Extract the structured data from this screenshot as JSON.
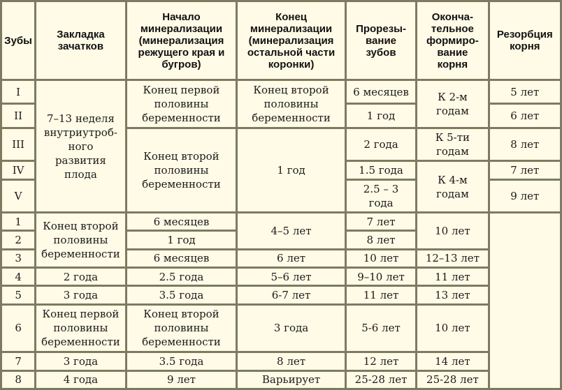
{
  "header": {
    "teeth": "Зубы",
    "germ": "Закладка\nзачатков",
    "min_start": "Начало\nминерализации\n(минерализация\nрежущего края и\nбугров)",
    "min_end": "Конец\nминерализации\n(минерализация\nостальной части\nкоронки)",
    "eruption": "Прорезы-\nвание\nзубов",
    "root_complete": "Оконча-\nтельное\nформиро-\nвание\nкорня",
    "resorption": "Резорбция\nкорня"
  },
  "primary": {
    "teeth": [
      "I",
      "II",
      "III",
      "IV",
      "V"
    ],
    "germ": "7–13 неделя\nвнутриутроб-\nного\nразвития\nплода",
    "min_start_12": "Конец первой\nполовины\nбеременности",
    "min_start_345": "Конец второй\nполовины\nбеременности",
    "min_end_12": "Конец второй\nполовины\nбеременности",
    "min_end_345": "1 год",
    "eruption": [
      "6 месяцев",
      "1 год",
      "2 года",
      "1.5 года",
      "2.5 – 3\nгода"
    ],
    "root_12": "К 2-м\nгодам",
    "root_3": "К 5-ти\nгодам",
    "root_45": "К 4-м\nгодам",
    "resorption": [
      "5 лет",
      "6 лет",
      "8 лет",
      "7 лет",
      "9 лет"
    ]
  },
  "permanent": {
    "teeth": [
      "1",
      "2",
      "3",
      "4",
      "5",
      "6",
      "7",
      "8"
    ],
    "germ_123": "Конец второй\nполовины\nбеременности",
    "germ_4": "2 года",
    "germ_5": "3 года",
    "germ_6": "Конец первой\nполовины\nбеременности",
    "germ_7": "3 года",
    "germ_8": "4 года",
    "min_start": [
      "6 месяцев",
      "1 год",
      "6 месяцев",
      "2.5 года",
      "3.5 года",
      "Конец второй\nполовины\nбеременности",
      "3.5 года",
      "9 лет"
    ],
    "min_end_12": "4–5 лет",
    "min_end": [
      "6 лет",
      "5–6 лет",
      "6-7 лет",
      "3 года",
      "8 лет",
      "Варьирует"
    ],
    "eruption": [
      "7 лет",
      "8 лет",
      "10 лет",
      "9–10 лет",
      "11 лет",
      "5-6 лет",
      "12 лет",
      "25-28 лет"
    ],
    "root_12": "10 лет",
    "root": [
      "12–13 лет",
      "11 лет",
      "13 лет",
      "10 лет",
      "14 лет",
      "25-28 лет"
    ]
  }
}
